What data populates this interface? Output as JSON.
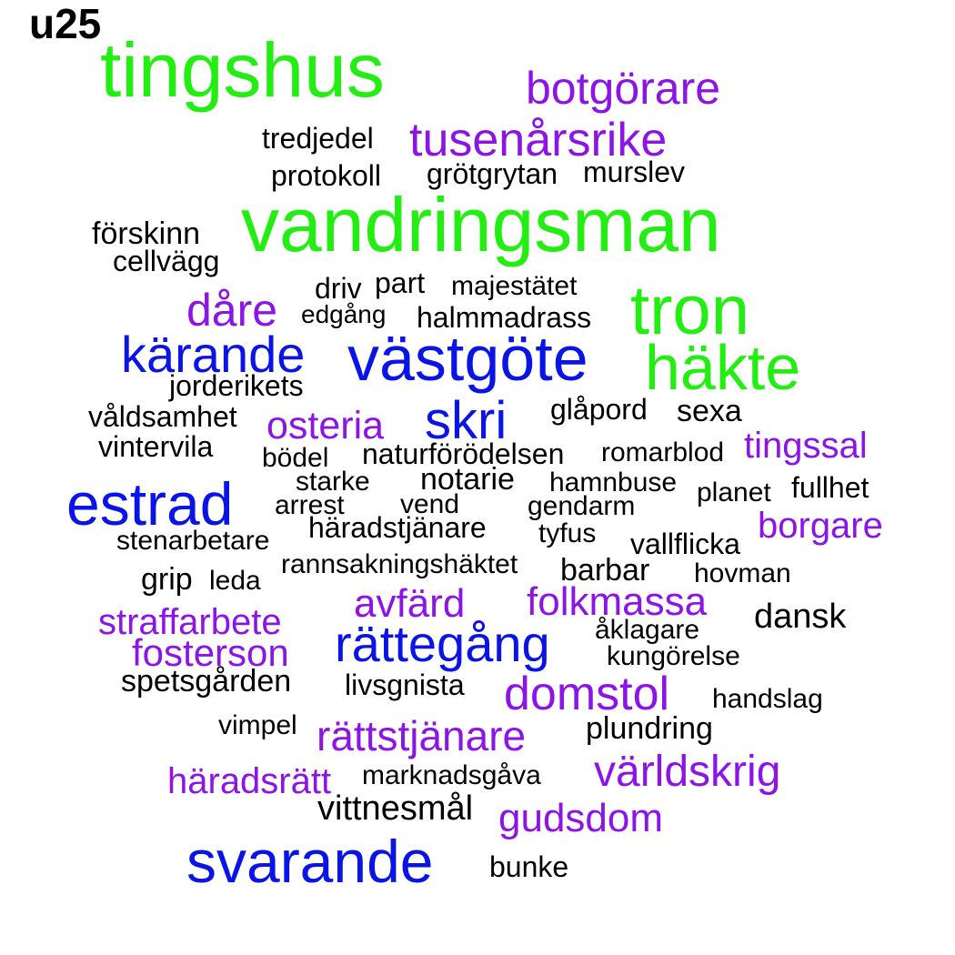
{
  "title": "u25",
  "colors": {
    "green": "#22ee11",
    "blue": "#0a14e6",
    "purple": "#8c14e6",
    "black": "#000000"
  },
  "words": [
    {
      "text": "tingshus",
      "group": "green"
    },
    {
      "text": "vandringsman",
      "group": "green"
    },
    {
      "text": "tron",
      "group": "green"
    },
    {
      "text": "häkte",
      "group": "green"
    },
    {
      "text": "västgöte",
      "group": "blue"
    },
    {
      "text": "kärande",
      "group": "blue"
    },
    {
      "text": "skri",
      "group": "blue"
    },
    {
      "text": "estrad",
      "group": "blue"
    },
    {
      "text": "rättegång",
      "group": "blue"
    },
    {
      "text": "svarande",
      "group": "blue"
    },
    {
      "text": "botgörare",
      "group": "purple"
    },
    {
      "text": "tusenårsrike",
      "group": "purple"
    },
    {
      "text": "dåre",
      "group": "purple"
    },
    {
      "text": "osteria",
      "group": "purple"
    },
    {
      "text": "tingssal",
      "group": "purple"
    },
    {
      "text": "borgare",
      "group": "purple"
    },
    {
      "text": "avfärd",
      "group": "purple"
    },
    {
      "text": "folkmassa",
      "group": "purple"
    },
    {
      "text": "straffarbete",
      "group": "purple"
    },
    {
      "text": "fosterson",
      "group": "purple"
    },
    {
      "text": "domstol",
      "group": "purple"
    },
    {
      "text": "rättstjänare",
      "group": "purple"
    },
    {
      "text": "världskrig",
      "group": "purple"
    },
    {
      "text": "häradsrätt",
      "group": "purple"
    },
    {
      "text": "gudsdom",
      "group": "purple"
    },
    {
      "text": "tredjedel",
      "group": "black"
    },
    {
      "text": "protokoll",
      "group": "black"
    },
    {
      "text": "grötgrytan",
      "group": "black"
    },
    {
      "text": "murslev",
      "group": "black"
    },
    {
      "text": "förskinn",
      "group": "black"
    },
    {
      "text": "cellvägg",
      "group": "black"
    },
    {
      "text": "driv",
      "group": "black"
    },
    {
      "text": "part",
      "group": "black"
    },
    {
      "text": "majestätet",
      "group": "black"
    },
    {
      "text": "edgång",
      "group": "black"
    },
    {
      "text": "halmmadrass",
      "group": "black"
    },
    {
      "text": "jorderikets",
      "group": "black"
    },
    {
      "text": "våldsamhet",
      "group": "black"
    },
    {
      "text": "glåpord",
      "group": "black"
    },
    {
      "text": "sexa",
      "group": "black"
    },
    {
      "text": "vintervila",
      "group": "black"
    },
    {
      "text": "bödel",
      "group": "black"
    },
    {
      "text": "naturförödelsen",
      "group": "black"
    },
    {
      "text": "romarblod",
      "group": "black"
    },
    {
      "text": "starke",
      "group": "black"
    },
    {
      "text": "notarie",
      "group": "black"
    },
    {
      "text": "hamnbuse",
      "group": "black"
    },
    {
      "text": "planet",
      "group": "black"
    },
    {
      "text": "fullhet",
      "group": "black"
    },
    {
      "text": "arrest",
      "group": "black"
    },
    {
      "text": "vend",
      "group": "black"
    },
    {
      "text": "gendarm",
      "group": "black"
    },
    {
      "text": "häradstjänare",
      "group": "black"
    },
    {
      "text": "tyfus",
      "group": "black"
    },
    {
      "text": "stenarbetare",
      "group": "black"
    },
    {
      "text": "vallflicka",
      "group": "black"
    },
    {
      "text": "rannsakningshäktet",
      "group": "black"
    },
    {
      "text": "barbar",
      "group": "black"
    },
    {
      "text": "hovman",
      "group": "black"
    },
    {
      "text": "grip",
      "group": "black"
    },
    {
      "text": "leda",
      "group": "black"
    },
    {
      "text": "dansk",
      "group": "black"
    },
    {
      "text": "åklagare",
      "group": "black"
    },
    {
      "text": "kungörelse",
      "group": "black"
    },
    {
      "text": "spetsgården",
      "group": "black"
    },
    {
      "text": "livsgnista",
      "group": "black"
    },
    {
      "text": "handslag",
      "group": "black"
    },
    {
      "text": "vimpel",
      "group": "black"
    },
    {
      "text": "plundring",
      "group": "black"
    },
    {
      "text": "marknadsgåva",
      "group": "black"
    },
    {
      "text": "vittnesmål",
      "group": "black"
    },
    {
      "text": "bunke",
      "group": "black"
    }
  ]
}
